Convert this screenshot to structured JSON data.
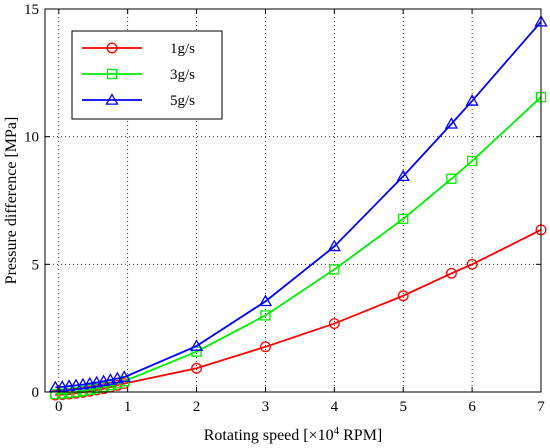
{
  "chart_data": {
    "type": "line",
    "xlabel_main": "Rotating speed [×10",
    "xlabel_exp": "4",
    "xlabel_tail": " RPM]",
    "ylabel": "Pressure difference [MPa]",
    "xlim": [
      -0.2,
      7
    ],
    "ylim": [
      0,
      15
    ],
    "xticks": [
      0,
      1,
      2,
      3,
      4,
      5,
      6,
      7
    ],
    "yticks": [
      0,
      5,
      10,
      15
    ],
    "grid": true,
    "legend_position": "top-left",
    "series": [
      {
        "name": "1g/s",
        "color": "#ff0000",
        "marker": "circle",
        "x": [
          -0.05,
          0.05,
          0.15,
          0.25,
          0.35,
          0.45,
          0.55,
          0.65,
          0.75,
          0.85,
          0.95,
          2,
          3,
          4,
          5,
          5.7,
          6,
          7
        ],
        "y": [
          -0.12,
          -0.1,
          -0.08,
          -0.05,
          -0.01,
          0.03,
          0.08,
          0.13,
          0.19,
          0.26,
          0.33,
          0.93,
          1.77,
          2.68,
          3.77,
          4.65,
          5.0,
          6.35
        ]
      },
      {
        "name": "3g/s",
        "color": "#00ee00",
        "marker": "square",
        "x": [
          -0.05,
          0.05,
          0.15,
          0.25,
          0.35,
          0.45,
          0.55,
          0.65,
          0.75,
          0.85,
          0.95,
          2,
          3,
          4,
          5,
          5.7,
          6,
          7
        ],
        "y": [
          -0.08,
          -0.06,
          -0.03,
          0.0,
          0.04,
          0.09,
          0.14,
          0.2,
          0.27,
          0.34,
          0.42,
          1.58,
          3.0,
          4.8,
          6.78,
          8.35,
          9.05,
          11.55
        ]
      },
      {
        "name": "5g/s",
        "color": "#0000ff",
        "marker": "triangle",
        "x": [
          -0.05,
          0.05,
          0.15,
          0.25,
          0.35,
          0.45,
          0.55,
          0.65,
          0.75,
          0.85,
          0.95,
          2,
          3,
          4,
          5,
          5.7,
          6,
          7
        ],
        "y": [
          0.18,
          0.2,
          0.23,
          0.26,
          0.29,
          0.33,
          0.37,
          0.42,
          0.47,
          0.53,
          0.58,
          1.8,
          3.55,
          5.7,
          8.45,
          10.5,
          11.4,
          14.5
        ]
      }
    ]
  }
}
